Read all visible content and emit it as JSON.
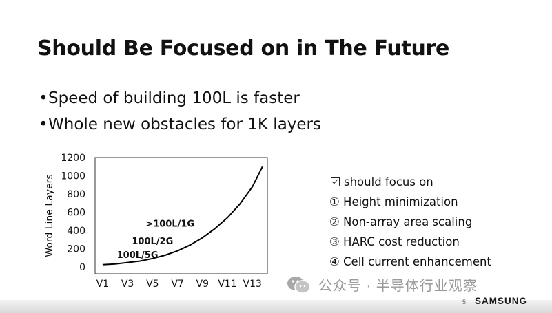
{
  "slide": {
    "title": "Should Be Focused on in The Future",
    "bullets": [
      "Speed of building 100L is faster",
      "Whole new obstacles for 1K layers"
    ],
    "bullet_marker": "•"
  },
  "focus": {
    "header": "should focus on",
    "items": [
      "① Height minimization",
      "② Non-array area scaling",
      "③ HARC cost reduction",
      "④ Cell current enhancement"
    ]
  },
  "chart_data": {
    "type": "line",
    "ylabel": "Word Line Layers",
    "xlabel": "",
    "categories": [
      "V1",
      "V3",
      "V5",
      "V7",
      "V9",
      "V11",
      "V13"
    ],
    "ylim": [
      0,
      1200
    ],
    "yticks": [
      0,
      200,
      400,
      600,
      800,
      1000,
      1200
    ],
    "series": [
      {
        "x": [
          1,
          2,
          3,
          4,
          5,
          6,
          7,
          8,
          9,
          10,
          11,
          12,
          13,
          13.8
        ],
        "values": [
          24,
          32,
          48,
          64,
          92,
          128,
          176,
          240,
          320,
          420,
          540,
          690,
          880,
          1100
        ]
      }
    ],
    "annotations": [
      {
        "text": "100L/5G",
        "x": 3.8,
        "y": 100
      },
      {
        "text": "100L/2G",
        "x": 5.0,
        "y": 250
      },
      {
        "text": ">100L/1G",
        "x": 6.4,
        "y": 440
      }
    ],
    "grid": false,
    "line_color": "#000000"
  },
  "watermark": {
    "text": "公众号 · 半导体行业观察"
  },
  "footer": {
    "page_number": "5",
    "logo": "SAMSUNG"
  }
}
